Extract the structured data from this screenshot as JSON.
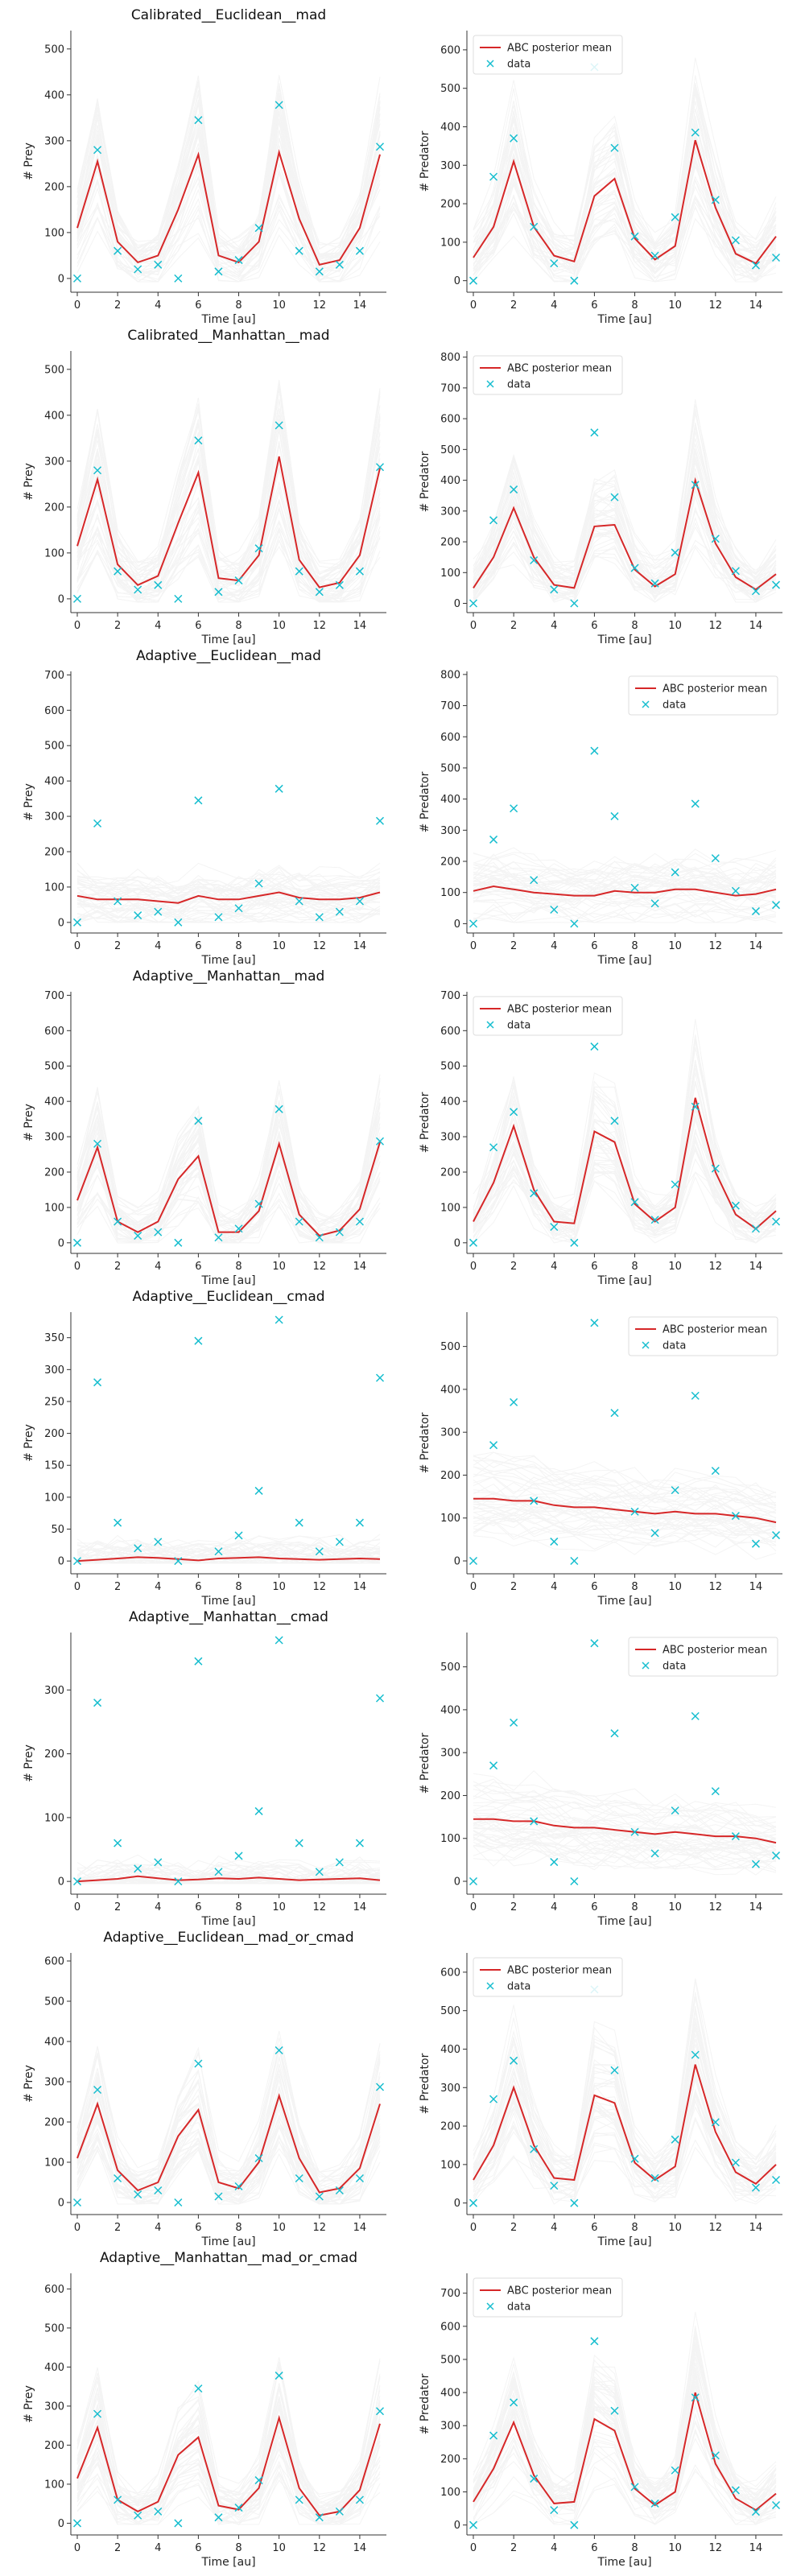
{
  "colors": {
    "mean": "#d62728",
    "data": "#17becf",
    "sample": "#cfcfcf",
    "axis": "#333333"
  },
  "x_ticks": [
    0,
    2,
    4,
    6,
    8,
    10,
    12,
    14
  ],
  "data": {
    "prey": [
      0,
      280,
      60,
      20,
      30,
      0,
      345,
      15,
      40,
      110,
      378,
      60,
      15,
      30,
      60,
      287
    ],
    "predator": [
      0,
      270,
      370,
      140,
      45,
      0,
      555,
      345,
      115,
      65,
      165,
      385,
      210,
      105,
      40,
      60
    ]
  },
  "chart_data": [
    {
      "type": "line",
      "row": 1,
      "col": "prey",
      "title": "Calibrated__Euclidean__mad",
      "xlabel": "Time [au]",
      "ylabel": "# Prey",
      "ylim": [
        -30,
        540
      ],
      "yticks": [
        0,
        100,
        200,
        300,
        400,
        500
      ],
      "legend": null,
      "series": [
        {
          "name": "ABC posterior mean",
          "values": [
            110,
            255,
            80,
            35,
            50,
            150,
            270,
            50,
            35,
            80,
            275,
            130,
            30,
            40,
            110,
            270
          ]
        },
        {
          "name": "data",
          "values": [
            0,
            280,
            60,
            20,
            30,
            0,
            345,
            15,
            40,
            110,
            378,
            60,
            15,
            30,
            60,
            287
          ]
        }
      ]
    },
    {
      "type": "line",
      "row": 1,
      "col": "predator",
      "title": "",
      "xlabel": "Time [au]",
      "ylabel": "# Predator",
      "ylim": [
        -30,
        650
      ],
      "yticks": [
        0,
        100,
        200,
        300,
        400,
        500,
        600
      ],
      "legend": "upper-left",
      "series": [
        {
          "name": "ABC posterior mean",
          "values": [
            60,
            140,
            310,
            140,
            65,
            50,
            220,
            265,
            110,
            55,
            90,
            365,
            190,
            70,
            45,
            115
          ]
        },
        {
          "name": "data",
          "values": [
            0,
            270,
            370,
            140,
            45,
            0,
            555,
            345,
            115,
            65,
            165,
            385,
            210,
            105,
            40,
            60
          ]
        }
      ]
    },
    {
      "type": "line",
      "row": 2,
      "col": "prey",
      "title": "Calibrated__Manhattan__mad",
      "xlabel": "Time [au]",
      "ylabel": "# Prey",
      "ylim": [
        -30,
        540
      ],
      "yticks": [
        0,
        100,
        200,
        300,
        400,
        500
      ],
      "legend": null,
      "series": [
        {
          "name": "ABC posterior mean",
          "values": [
            115,
            260,
            75,
            30,
            50,
            165,
            275,
            45,
            40,
            95,
            310,
            85,
            25,
            35,
            95,
            285
          ]
        },
        {
          "name": "data",
          "values": [
            0,
            280,
            60,
            20,
            30,
            0,
            345,
            15,
            40,
            110,
            378,
            60,
            15,
            30,
            60,
            287
          ]
        }
      ]
    },
    {
      "type": "line",
      "row": 2,
      "col": "predator",
      "title": "",
      "xlabel": "Time [au]",
      "ylabel": "# Predator",
      "ylim": [
        -30,
        820
      ],
      "yticks": [
        0,
        100,
        200,
        300,
        400,
        500,
        600,
        700,
        800
      ],
      "legend": "upper-left",
      "series": [
        {
          "name": "ABC posterior mean",
          "values": [
            50,
            150,
            310,
            150,
            60,
            50,
            250,
            255,
            110,
            55,
            95,
            400,
            195,
            85,
            45,
            95
          ]
        },
        {
          "name": "data",
          "values": [
            0,
            270,
            370,
            140,
            45,
            0,
            555,
            345,
            115,
            65,
            165,
            385,
            210,
            105,
            40,
            60
          ]
        }
      ]
    },
    {
      "type": "line",
      "row": 3,
      "col": "prey",
      "title": "Adaptive__Euclidean__mad",
      "xlabel": "Time [au]",
      "ylabel": "# Prey",
      "ylim": [
        -30,
        710
      ],
      "yticks": [
        0,
        100,
        200,
        300,
        400,
        500,
        600,
        700
      ],
      "legend": null,
      "series": [
        {
          "name": "ABC posterior mean",
          "values": [
            75,
            65,
            65,
            65,
            60,
            55,
            75,
            65,
            65,
            75,
            85,
            70,
            65,
            65,
            70,
            85
          ]
        },
        {
          "name": "data",
          "values": [
            0,
            280,
            60,
            20,
            30,
            0,
            345,
            15,
            40,
            110,
            378,
            60,
            15,
            30,
            60,
            287
          ]
        }
      ]
    },
    {
      "type": "line",
      "row": 3,
      "col": "predator",
      "title": "",
      "xlabel": "Time [au]",
      "ylabel": "# Predator",
      "ylim": [
        -30,
        810
      ],
      "yticks": [
        0,
        100,
        200,
        300,
        400,
        500,
        600,
        700,
        800
      ],
      "legend": "upper-right",
      "series": [
        {
          "name": "ABC posterior mean",
          "values": [
            105,
            120,
            110,
            100,
            95,
            90,
            90,
            105,
            100,
            100,
            110,
            110,
            100,
            90,
            95,
            110
          ]
        },
        {
          "name": "data",
          "values": [
            0,
            270,
            370,
            140,
            45,
            0,
            555,
            345,
            115,
            65,
            165,
            385,
            210,
            105,
            40,
            60
          ]
        }
      ]
    },
    {
      "type": "line",
      "row": 4,
      "col": "prey",
      "title": "Adaptive__Manhattan__mad",
      "xlabel": "Time [au]",
      "ylabel": "# Prey",
      "ylim": [
        -30,
        710
      ],
      "yticks": [
        0,
        100,
        200,
        300,
        400,
        500,
        600,
        700
      ],
      "legend": null,
      "series": [
        {
          "name": "ABC posterior mean",
          "values": [
            120,
            270,
            60,
            30,
            60,
            180,
            245,
            30,
            30,
            90,
            280,
            80,
            20,
            35,
            95,
            285
          ]
        },
        {
          "name": "data",
          "values": [
            0,
            280,
            60,
            20,
            30,
            0,
            345,
            15,
            40,
            110,
            378,
            60,
            15,
            30,
            60,
            287
          ]
        }
      ]
    },
    {
      "type": "line",
      "row": 4,
      "col": "predator",
      "title": "",
      "xlabel": "Time [au]",
      "ylabel": "# Predator",
      "ylim": [
        -30,
        710
      ],
      "yticks": [
        0,
        100,
        200,
        300,
        400,
        500,
        600,
        700
      ],
      "legend": "upper-left",
      "series": [
        {
          "name": "ABC posterior mean",
          "values": [
            60,
            170,
            330,
            150,
            60,
            55,
            315,
            285,
            110,
            60,
            100,
            410,
            200,
            80,
            40,
            90
          ]
        },
        {
          "name": "data",
          "values": [
            0,
            270,
            370,
            140,
            45,
            0,
            555,
            345,
            115,
            65,
            165,
            385,
            210,
            105,
            40,
            60
          ]
        }
      ]
    },
    {
      "type": "line",
      "row": 5,
      "col": "prey",
      "title": "Adaptive__Euclidean__cmad",
      "xlabel": "Time [au]",
      "ylabel": "# Prey",
      "ylim": [
        -20,
        390
      ],
      "yticks": [
        0,
        50,
        100,
        150,
        200,
        250,
        300,
        350
      ],
      "legend": null,
      "series": [
        {
          "name": "ABC posterior mean",
          "values": [
            0,
            2,
            4,
            6,
            5,
            3,
            1,
            4,
            5,
            6,
            4,
            3,
            2,
            3,
            4,
            3
          ]
        },
        {
          "name": "data",
          "values": [
            0,
            280,
            60,
            20,
            30,
            0,
            345,
            15,
            40,
            110,
            378,
            60,
            15,
            30,
            60,
            287
          ]
        }
      ]
    },
    {
      "type": "line",
      "row": 5,
      "col": "predator",
      "title": "",
      "xlabel": "Time [au]",
      "ylabel": "# Predator",
      "ylim": [
        -30,
        580
      ],
      "yticks": [
        0,
        100,
        200,
        300,
        400,
        500
      ],
      "legend": "upper-right",
      "series": [
        {
          "name": "ABC posterior mean",
          "values": [
            145,
            145,
            140,
            140,
            130,
            125,
            125,
            120,
            115,
            110,
            115,
            110,
            110,
            105,
            100,
            90
          ]
        },
        {
          "name": "data",
          "values": [
            0,
            270,
            370,
            140,
            45,
            0,
            555,
            345,
            115,
            65,
            165,
            385,
            210,
            105,
            40,
            60
          ]
        }
      ]
    },
    {
      "type": "line",
      "row": 6,
      "col": "prey",
      "title": "Adaptive__Manhattan__cmad",
      "xlabel": "Time [au]",
      "ylabel": "# Prey",
      "ylim": [
        -20,
        390
      ],
      "yticks": [
        0,
        100,
        200,
        300
      ],
      "legend": null,
      "series": [
        {
          "name": "ABC posterior mean",
          "values": [
            0,
            2,
            4,
            8,
            5,
            2,
            3,
            5,
            4,
            6,
            4,
            2,
            3,
            4,
            5,
            2
          ]
        },
        {
          "name": "data",
          "values": [
            0,
            280,
            60,
            20,
            30,
            0,
            345,
            15,
            40,
            110,
            378,
            60,
            15,
            30,
            60,
            287
          ]
        }
      ]
    },
    {
      "type": "line",
      "row": 6,
      "col": "predator",
      "title": "",
      "xlabel": "Time [au]",
      "ylabel": "# Predator",
      "ylim": [
        -30,
        580
      ],
      "yticks": [
        0,
        100,
        200,
        300,
        400,
        500
      ],
      "legend": "upper-right",
      "series": [
        {
          "name": "ABC posterior mean",
          "values": [
            145,
            145,
            140,
            140,
            130,
            125,
            125,
            120,
            115,
            110,
            115,
            110,
            105,
            105,
            100,
            90
          ]
        },
        {
          "name": "data",
          "values": [
            0,
            270,
            370,
            140,
            45,
            0,
            555,
            345,
            115,
            65,
            165,
            385,
            210,
            105,
            40,
            60
          ]
        }
      ]
    },
    {
      "type": "line",
      "row": 7,
      "col": "prey",
      "title": "Adaptive__Euclidean__mad_or_cmad",
      "xlabel": "Time [au]",
      "ylabel": "# Prey",
      "ylim": [
        -30,
        620
      ],
      "yticks": [
        0,
        100,
        200,
        300,
        400,
        500,
        600
      ],
      "legend": null,
      "series": [
        {
          "name": "ABC posterior mean",
          "values": [
            110,
            245,
            80,
            30,
            50,
            165,
            230,
            50,
            35,
            100,
            265,
            110,
            25,
            35,
            85,
            245
          ]
        },
        {
          "name": "data",
          "values": [
            0,
            280,
            60,
            20,
            30,
            0,
            345,
            15,
            40,
            110,
            378,
            60,
            15,
            30,
            60,
            287
          ]
        }
      ]
    },
    {
      "type": "line",
      "row": 7,
      "col": "predator",
      "title": "",
      "xlabel": "Time [au]",
      "ylabel": "# Predator",
      "ylim": [
        -30,
        650
      ],
      "yticks": [
        0,
        100,
        200,
        300,
        400,
        500,
        600
      ],
      "legend": "upper-left",
      "series": [
        {
          "name": "ABC posterior mean",
          "values": [
            60,
            150,
            300,
            150,
            65,
            60,
            280,
            260,
            105,
            60,
            95,
            360,
            185,
            80,
            50,
            100
          ]
        },
        {
          "name": "data",
          "values": [
            0,
            270,
            370,
            140,
            45,
            0,
            555,
            345,
            115,
            65,
            165,
            385,
            210,
            105,
            40,
            60
          ]
        }
      ]
    },
    {
      "type": "line",
      "row": 8,
      "col": "prey",
      "title": "Adaptive__Manhattan__mad_or_cmad",
      "xlabel": "Time [au]",
      "ylabel": "# Prey",
      "ylim": [
        -30,
        640
      ],
      "yticks": [
        0,
        100,
        200,
        300,
        400,
        500,
        600
      ],
      "legend": null,
      "series": [
        {
          "name": "ABC posterior mean",
          "values": [
            115,
            245,
            60,
            30,
            55,
            175,
            220,
            45,
            35,
            90,
            270,
            90,
            20,
            30,
            85,
            255
          ]
        },
        {
          "name": "data",
          "values": [
            0,
            280,
            60,
            20,
            30,
            0,
            345,
            15,
            40,
            110,
            378,
            60,
            15,
            30,
            60,
            287
          ]
        }
      ]
    },
    {
      "type": "line",
      "row": 8,
      "col": "predator",
      "title": "",
      "xlabel": "Time [au]",
      "ylabel": "# Predator",
      "ylim": [
        -30,
        760
      ],
      "yticks": [
        0,
        100,
        200,
        300,
        400,
        500,
        600,
        700
      ],
      "legend": "upper-left",
      "series": [
        {
          "name": "ABC posterior mean",
          "values": [
            70,
            170,
            310,
            150,
            65,
            70,
            320,
            285,
            110,
            60,
            100,
            400,
            185,
            80,
            45,
            95
          ]
        },
        {
          "name": "data",
          "values": [
            0,
            270,
            370,
            140,
            45,
            0,
            555,
            345,
            115,
            65,
            165,
            385,
            210,
            105,
            40,
            60
          ]
        }
      ]
    }
  ]
}
